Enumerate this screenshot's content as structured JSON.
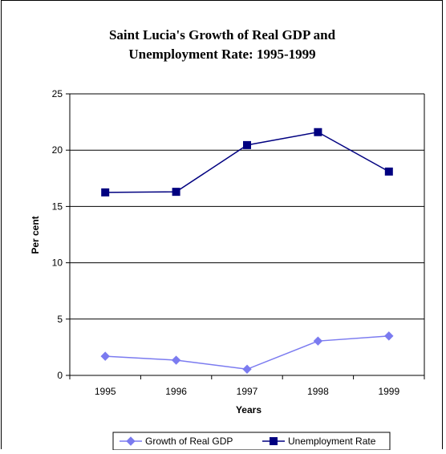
{
  "chart_data": {
    "type": "line",
    "title_line1": "Saint Lucia's Growth of Real GDP and",
    "title_line2": "Unemployment Rate: 1995-1999",
    "xlabel": "Years",
    "ylabel": "Per cent",
    "categories": [
      "1995",
      "1996",
      "1997",
      "1998",
      "1999"
    ],
    "ylim": [
      0,
      25
    ],
    "yticks": [
      0,
      5,
      10,
      15,
      20,
      25
    ],
    "grid": true,
    "legend_position": "bottom",
    "series": [
      {
        "name": "Growth of Real GDP",
        "values": [
          1.7,
          1.35,
          0.55,
          3.05,
          3.5
        ],
        "color": "#7b7bf0",
        "marker": "diamond"
      },
      {
        "name": "Unemployment Rate",
        "values": [
          16.25,
          16.3,
          20.45,
          21.6,
          18.1
        ],
        "color": "#000080",
        "marker": "square"
      }
    ]
  }
}
